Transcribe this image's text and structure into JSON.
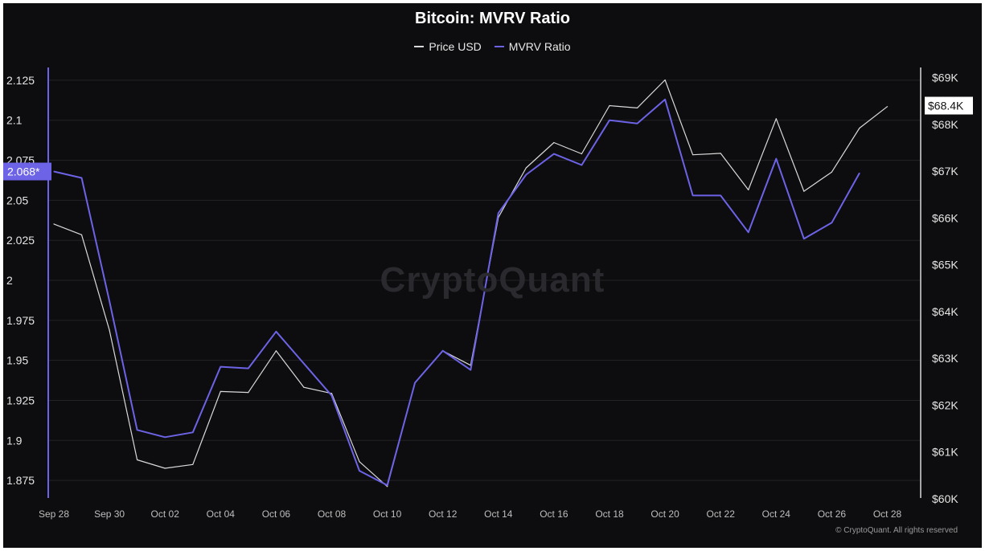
{
  "chart_data": {
    "type": "line",
    "title": "Bitcoin: MVRV Ratio",
    "x_ticks": [
      "Sep 28",
      "Sep 30",
      "Oct 02",
      "Oct 04",
      "Oct 06",
      "Oct 08",
      "Oct 10",
      "Oct 12",
      "Oct 14",
      "Oct 16",
      "Oct 18",
      "Oct 20",
      "Oct 22",
      "Oct 24",
      "Oct 26",
      "Oct 28"
    ],
    "left_axis": {
      "ticks": [
        "1.875",
        "1.9",
        "1.925",
        "1.95",
        "1.975",
        "2",
        "2.025",
        "2.05",
        "2.075",
        "2.1",
        "2.125"
      ],
      "range": [
        1.863,
        2.134
      ],
      "current_label": "2.068*",
      "current_value": 2.068
    },
    "right_axis": {
      "ticks": [
        "$60K",
        "$61K",
        "$62K",
        "$63K",
        "$64K",
        "$65K",
        "$66K",
        "$67K",
        "$68K",
        "$69K"
      ],
      "tick_values": [
        60000,
        61000,
        62000,
        63000,
        64000,
        65000,
        66000,
        67000,
        68000,
        69000
      ],
      "range": [
        59980,
        69250
      ],
      "current_label": "$68.4K",
      "current_value": 68400
    },
    "series": [
      {
        "name": "Price USD",
        "color": "#d9d9d9",
        "axis": "right",
        "x": [
          "Sep 28",
          "Sep 29",
          "Sep 30",
          "Oct 01",
          "Oct 02",
          "Oct 03",
          "Oct 04",
          "Oct 05",
          "Oct 06",
          "Oct 07",
          "Oct 08",
          "Oct 09",
          "Oct 10",
          "Oct 11",
          "Oct 12",
          "Oct 13",
          "Oct 14",
          "Oct 15",
          "Oct 16",
          "Oct 17",
          "Oct 18",
          "Oct 19",
          "Oct 20",
          "Oct 21",
          "Oct 22",
          "Oct 23",
          "Oct 24",
          "Oct 25",
          "Oct 26",
          "Oct 27",
          "Oct 28"
        ],
        "values": [
          65870,
          65640,
          63600,
          60830,
          60650,
          60730,
          62290,
          62270,
          63160,
          62380,
          62250,
          60790,
          60260,
          62480,
          63160,
          62850,
          66010,
          67070,
          67610,
          67370,
          68400,
          68350,
          68950,
          67350,
          67380,
          66600,
          68120,
          66570,
          66980,
          67920,
          68380
        ]
      },
      {
        "name": "MVRV Ratio",
        "color": "#6c63e6",
        "axis": "left",
        "x": [
          "Sep 28",
          "Sep 29",
          "Sep 30",
          "Oct 01",
          "Oct 02",
          "Oct 03",
          "Oct 04",
          "Oct 05",
          "Oct 06",
          "Oct 07",
          "Oct 08",
          "Oct 09",
          "Oct 10",
          "Oct 11",
          "Oct 12",
          "Oct 13",
          "Oct 14",
          "Oct 15",
          "Oct 16",
          "Oct 17",
          "Oct 18",
          "Oct 19",
          "Oct 20",
          "Oct 21",
          "Oct 22",
          "Oct 23",
          "Oct 24",
          "Oct 25",
          "Oct 26",
          "Oct 27"
        ],
        "values": [
          2.068,
          2.064,
          1.987,
          1.9065,
          1.902,
          1.905,
          1.946,
          1.945,
          1.968,
          1.948,
          1.928,
          1.881,
          1.872,
          1.936,
          1.956,
          1.944,
          2.042,
          2.066,
          2.079,
          2.072,
          2.1,
          2.098,
          2.113,
          2.053,
          2.053,
          2.03,
          2.076,
          2.026,
          2.036,
          2.067
        ]
      }
    ],
    "legend": {
      "placement": "top-center",
      "items": [
        "Price USD",
        "MVRV Ratio"
      ]
    },
    "grid": true,
    "watermark": "CryptoQuant",
    "copyright": "© CryptoQuant. All rights reserved"
  }
}
